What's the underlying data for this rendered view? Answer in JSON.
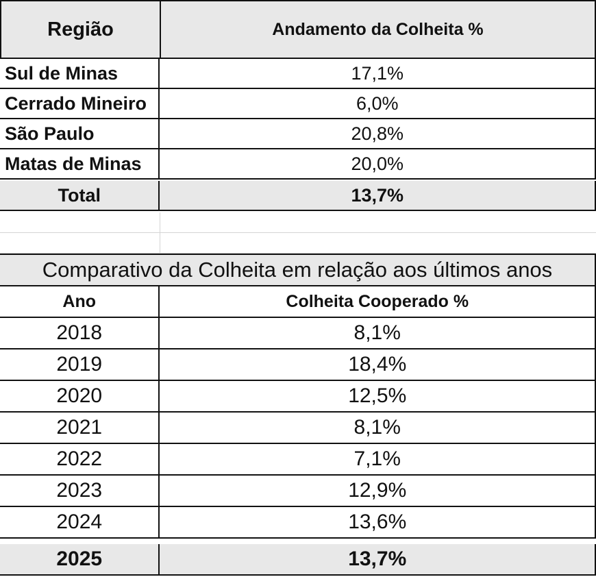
{
  "regional_table": {
    "header": {
      "region": "Região",
      "progress": "Andamento da Colheita %"
    },
    "rows": [
      {
        "region": "Sul de Minas",
        "value": "17,1%"
      },
      {
        "region": "Cerrado Mineiro",
        "value": "6,0%"
      },
      {
        "region": "São Paulo",
        "value": "20,8%"
      },
      {
        "region": "Matas de Minas",
        "value": "20,0%"
      }
    ],
    "total": {
      "label": "Total",
      "value": "13,7%"
    }
  },
  "comparison_table": {
    "title": "Comparativo da Colheita em relação aos últimos anos",
    "header": {
      "year": "Ano",
      "value": "Colheita Cooperado %"
    },
    "rows": [
      {
        "year": "2018",
        "value": "8,1%"
      },
      {
        "year": "2019",
        "value": "18,4%"
      },
      {
        "year": "2020",
        "value": "12,5%"
      },
      {
        "year": "2021",
        "value": "8,1%"
      },
      {
        "year": "2022",
        "value": "7,1%"
      },
      {
        "year": "2023",
        "value": "12,9%"
      },
      {
        "year": "2024",
        "value": "13,6%"
      },
      {
        "year": "2025",
        "value": "13,7%"
      }
    ]
  }
}
